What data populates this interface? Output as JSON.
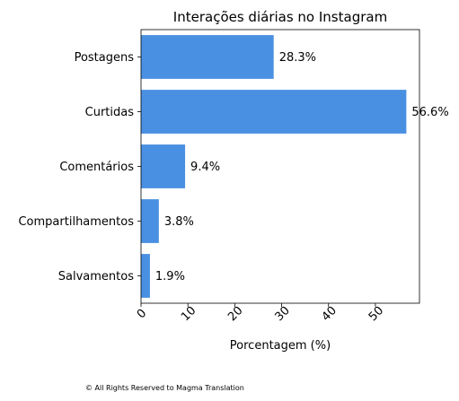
{
  "chart_data": {
    "type": "bar",
    "orientation": "horizontal",
    "title": "Interações diárias no Instagram",
    "xlabel": "Porcentagem (%)",
    "ylabel": "",
    "categories": [
      "Postagens",
      "Curtidas",
      "Comentários",
      "Compartilhamentos",
      "Salvamentos"
    ],
    "values": [
      28.3,
      56.6,
      9.4,
      3.8,
      1.9
    ],
    "value_labels": [
      "28.3%",
      "56.6%",
      "9.4%",
      "3.8%",
      "1.9%"
    ],
    "xlim": [
      0,
      59.4
    ],
    "xticks": [
      0,
      10,
      20,
      30,
      40,
      50
    ],
    "xtick_labels": [
      "0",
      "10",
      "20",
      "30",
      "40",
      "50"
    ],
    "grid": false,
    "bar_color": "#4a90e2"
  },
  "footer": "© All Rights Reserved to Magma Translation"
}
